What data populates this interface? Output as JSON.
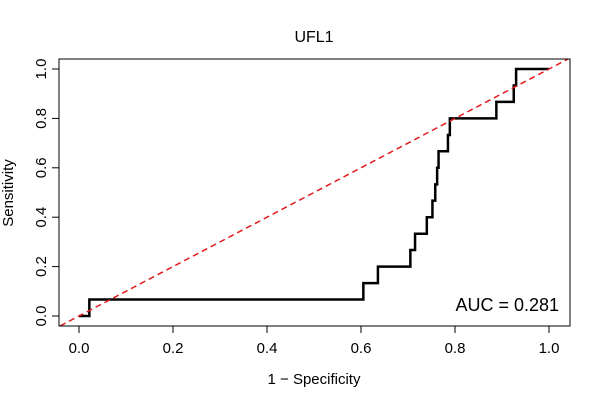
{
  "chart_data": {
    "type": "line",
    "title": "UFL1",
    "xlabel": "1 − Specificity",
    "ylabel": "Sensitivity",
    "xlim": [
      0,
      1
    ],
    "ylim": [
      0,
      1
    ],
    "x_ticks": [
      0.0,
      0.2,
      0.4,
      0.6,
      0.8,
      1.0
    ],
    "y_ticks": [
      0.0,
      0.2,
      0.4,
      0.6,
      0.8,
      1.0
    ],
    "x_tick_labels": [
      "0.0",
      "0.2",
      "0.4",
      "0.6",
      "0.8",
      "1.0"
    ],
    "y_tick_labels": [
      "0.0",
      "0.2",
      "0.4",
      "0.6",
      "0.8",
      "1.0"
    ],
    "grid": false,
    "series": [
      {
        "style": "step",
        "color": "#000000",
        "points": [
          [
            0.0,
            0.0
          ],
          [
            0.022,
            0.0
          ],
          [
            0.022,
            0.067
          ],
          [
            0.605,
            0.067
          ],
          [
            0.605,
            0.133
          ],
          [
            0.636,
            0.133
          ],
          [
            0.636,
            0.2
          ],
          [
            0.705,
            0.2
          ],
          [
            0.705,
            0.267
          ],
          [
            0.715,
            0.267
          ],
          [
            0.715,
            0.333
          ],
          [
            0.74,
            0.333
          ],
          [
            0.74,
            0.4
          ],
          [
            0.752,
            0.4
          ],
          [
            0.752,
            0.467
          ],
          [
            0.758,
            0.467
          ],
          [
            0.758,
            0.533
          ],
          [
            0.762,
            0.533
          ],
          [
            0.762,
            0.6
          ],
          [
            0.765,
            0.6
          ],
          [
            0.765,
            0.667
          ],
          [
            0.785,
            0.667
          ],
          [
            0.785,
            0.733
          ],
          [
            0.789,
            0.733
          ],
          [
            0.789,
            0.8
          ],
          [
            0.888,
            0.8
          ],
          [
            0.888,
            0.867
          ],
          [
            0.925,
            0.867
          ],
          [
            0.925,
            0.933
          ],
          [
            0.93,
            0.933
          ],
          [
            0.93,
            1.0
          ],
          [
            1.0,
            1.0
          ]
        ]
      },
      {
        "style": "dashed",
        "color": "#e31a1c",
        "points": [
          [
            -0.04,
            -0.04
          ],
          [
            1.04,
            1.04
          ]
        ]
      }
    ],
    "annotations": [
      {
        "text": "AUC = 0.281",
        "position": "bottom-right"
      }
    ]
  }
}
